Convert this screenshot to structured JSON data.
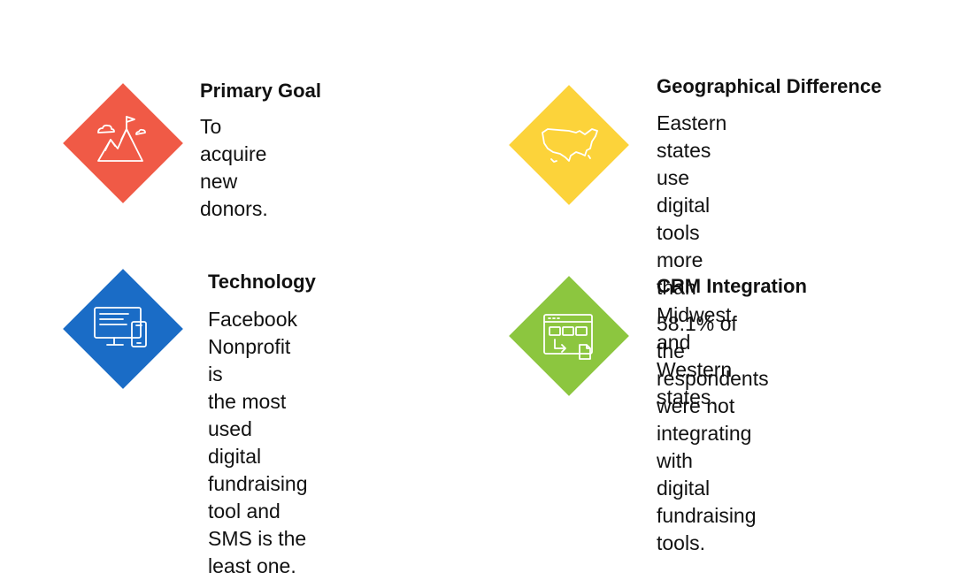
{
  "colors": {
    "goal": "#F05A46",
    "technology": "#1A6CC6",
    "geography": "#FCD33A",
    "crm": "#8CC63F"
  },
  "cards": {
    "goal": {
      "title": "Primary Goal",
      "text": "To acquire new donors.",
      "icon": "mountain-flag-icon"
    },
    "technology": {
      "title": "Technology",
      "text": "Facebook Nonprofit is\nthe most used digital\nfundraising tool and\nSMS is the least one.",
      "icon": "desktop-mobile-icon"
    },
    "geography": {
      "title": "Geographical Difference",
      "text": "Eastern states use digital\ntools more than Midwest\nand Western states.",
      "icon": "usa-map-icon"
    },
    "crm": {
      "title": "CRM Integration",
      "text": "58.1% of the respondents\nwere not integrating with\ndigital fundraising tools.",
      "icon": "browser-window-icon"
    }
  }
}
